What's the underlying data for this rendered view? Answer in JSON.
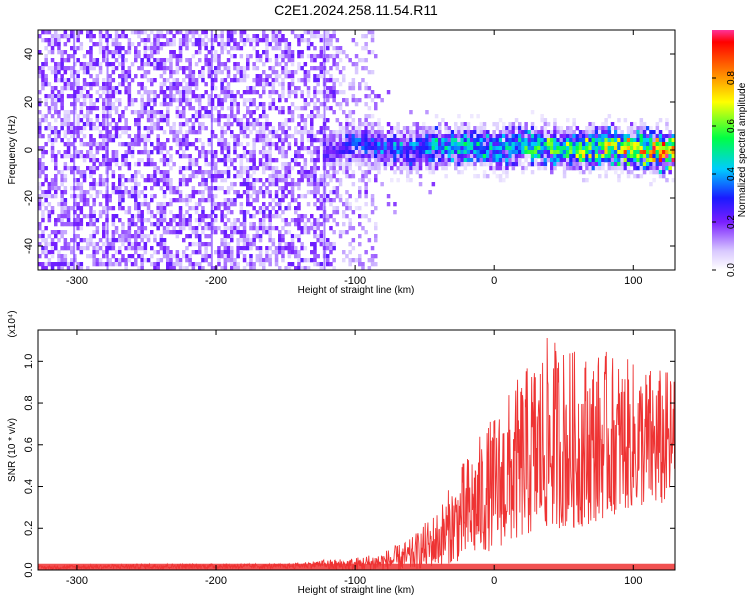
{
  "title": "C2E1.2024.258.11.54.R11",
  "chart_data": [
    {
      "type": "heatmap",
      "xlabel": "Height of straight line (km)",
      "ylabel": "Frequency (Hz)",
      "xlim": [
        -328,
        130
      ],
      "ylim": [
        -50,
        50
      ],
      "xticks": [
        -300,
        -200,
        -100,
        0,
        100
      ],
      "xtick_labels": [
        "-300",
        "-200",
        "-100",
        "0",
        "100"
      ],
      "yticks": [
        -40,
        -20,
        0,
        20,
        40
      ],
      "ytick_labels": [
        "-40",
        "-20",
        "0",
        "20",
        "40"
      ],
      "colorbar": {
        "label": "Normalized spectral amplitude",
        "range": [
          0,
          1
        ],
        "ticks": [
          0.0,
          0.2,
          0.4,
          0.6,
          0.8
        ],
        "tick_labels": [
          "0.0",
          "0.2",
          "0.4",
          "0.6",
          "0.8"
        ]
      },
      "ridge": {
        "x": [
          -120,
          -100,
          -80,
          -60,
          -40,
          -20,
          0,
          20,
          40,
          60,
          80,
          100,
          120
        ],
        "center_hz": [
          0,
          4,
          2,
          1,
          3,
          2,
          1,
          3,
          2,
          1,
          2,
          1,
          0
        ],
        "amplitude": [
          0.25,
          0.35,
          0.4,
          0.45,
          0.5,
          0.5,
          0.5,
          0.6,
          0.65,
          0.7,
          0.75,
          0.85,
          0.95
        ]
      },
      "grid": false
    },
    {
      "type": "line",
      "xlabel": "Height of straight line (km)",
      "ylabel": "SNR (10 * v/v)",
      "yscale_label": "(x10⁴)",
      "xlim": [
        -328,
        130
      ],
      "ylim": [
        0,
        1.15
      ],
      "xticks": [
        -300,
        -200,
        -100,
        0,
        100
      ],
      "xtick_labels": [
        "-300",
        "-200",
        "-100",
        "0",
        "100"
      ],
      "yticks": [
        0.0,
        0.2,
        0.4,
        0.6,
        0.8,
        1.0
      ],
      "ytick_labels": [
        "0.0",
        "0.2",
        "0.4",
        "0.6",
        "0.8",
        "1.0"
      ],
      "series": [
        {
          "color": "#ee3333",
          "envelope_x": [
            -328,
            -250,
            -200,
            -150,
            -120,
            -100,
            -80,
            -60,
            -40,
            -20,
            0,
            20,
            40,
            60,
            80,
            100,
            120,
            130
          ],
          "envelope_max": [
            0.02,
            0.03,
            0.03,
            0.03,
            0.05,
            0.06,
            0.09,
            0.15,
            0.3,
            0.55,
            0.75,
            0.95,
            1.13,
            1.05,
            1.05,
            1.0,
            0.97,
            0.95
          ],
          "envelope_min": [
            0.0,
            0.0,
            0.0,
            0.0,
            0.0,
            0.0,
            0.0,
            0.0,
            0.02,
            0.05,
            0.1,
            0.15,
            0.2,
            0.2,
            0.25,
            0.3,
            0.3,
            0.35
          ]
        }
      ],
      "grid": false
    }
  ]
}
